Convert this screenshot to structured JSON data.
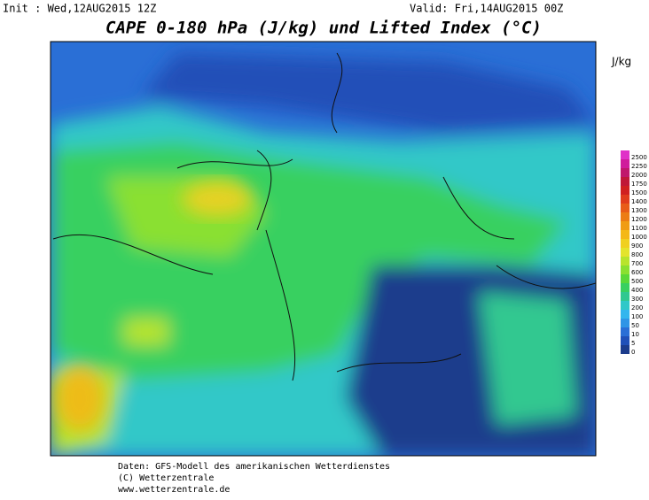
{
  "header": {
    "init": "Init : Wed,12AUG2015 12Z",
    "valid": "Valid: Fri,14AUG2015 00Z",
    "title": "CAPE 0-180 hPa (J/kg) und Lifted Index (°C)"
  },
  "legend": {
    "unit": "J/kg",
    "levels": [
      "0",
      "5",
      "10",
      "50",
      "100",
      "200",
      "300",
      "400",
      "500",
      "600",
      "700",
      "800",
      "900",
      "1000",
      "1100",
      "1200",
      "1300",
      "1400",
      "1500",
      "1750",
      "2000",
      "2250",
      "2500"
    ],
    "colors": [
      "#1c3c8c",
      "#2050b8",
      "#2a6fd6",
      "#2f95e6",
      "#33b6ee",
      "#30c8c8",
      "#30c890",
      "#38d060",
      "#5ad838",
      "#8ae030",
      "#b8e42c",
      "#e4e42c",
      "#f0d020",
      "#f4b818",
      "#f09c14",
      "#ec7c14",
      "#e85c18",
      "#e03c1c",
      "#d02020",
      "#c01838",
      "#c0186c",
      "#d01c9c",
      "#e030c8"
    ]
  },
  "footer": [
    "Daten: GFS-Modell des amerikanischen Wetterdienstes",
    "(C) Wetterzentrale",
    "www.wetterzentrale.de"
  ]
}
